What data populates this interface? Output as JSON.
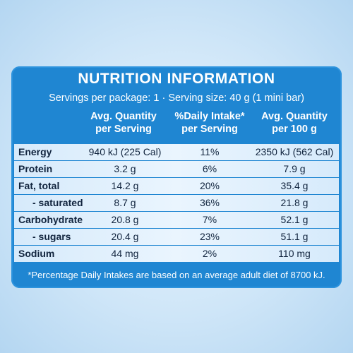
{
  "label": {
    "title": "NUTRITION INFORMATION",
    "subtitle": "Servings per package: 1 · Serving size: 40 g (1 mini bar)",
    "columns": [
      {
        "line1": "Avg. Quantity",
        "line2": "per Serving"
      },
      {
        "line1": "%Daily Intake*",
        "line2": "per Serving"
      },
      {
        "line1": "Avg. Quantity",
        "line2": "per 100 g"
      }
    ],
    "rows": [
      {
        "name": "Energy",
        "per_serving": "940 kJ (225 Cal)",
        "daily_intake": "11%",
        "per_100g": "2350 kJ (562 Cal)"
      },
      {
        "name": "Protein",
        "per_serving": "3.2 g",
        "daily_intake": "6%",
        "per_100g": "7.9 g"
      },
      {
        "name": "Fat, total",
        "per_serving": "14.2 g",
        "daily_intake": "20%",
        "per_100g": "35.4 g"
      },
      {
        "name": "- saturated",
        "per_serving": "8.7 g",
        "daily_intake": "36%",
        "per_100g": "21.8 g"
      },
      {
        "name": "Carbohydrate",
        "per_serving": "20.8 g",
        "daily_intake": "7%",
        "per_100g": "52.1 g"
      },
      {
        "name": "- sugars",
        "per_serving": "20.4 g",
        "daily_intake": "23%",
        "per_100g": "51.1 g"
      },
      {
        "name": "Sodium",
        "per_serving": "44 mg",
        "daily_intake": "2%",
        "per_100g": "110 mg"
      }
    ],
    "footnote": "*Percentage Daily Intakes are based on an average adult diet of 8700 kJ."
  },
  "colors": {
    "panel": "#1f86d2",
    "row_light": "#eaf5fe",
    "row_edge": "#d6eafb",
    "text_dark": "#10233d",
    "text_light": "#ffffff"
  }
}
